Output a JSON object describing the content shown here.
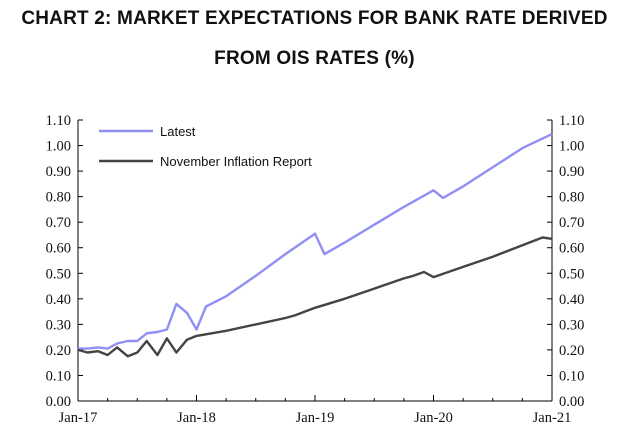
{
  "chart_data": {
    "type": "line",
    "title_line1": "CHART 2: MARKET EXPECTATIONS FOR BANK RATE DERIVED",
    "title_line2": "FROM OIS RATES (%)",
    "xlabel": "",
    "ylabel": "",
    "ylim": [
      0,
      1.1
    ],
    "xlim": [
      2017.0,
      2021.0
    ],
    "yticks": [
      "1.10",
      "1.00",
      "0.90",
      "0.80",
      "0.70",
      "0.60",
      "0.50",
      "0.40",
      "0.30",
      "0.20",
      "0.10",
      "0.00"
    ],
    "xticks": [
      {
        "label": "Jan-17",
        "x": 2017.0
      },
      {
        "label": "Jan-18",
        "x": 2018.0
      },
      {
        "label": "Jan-19",
        "x": 2019.0
      },
      {
        "label": "Jan-20",
        "x": 2020.0
      },
      {
        "label": "Jan-21",
        "x": 2021.0
      }
    ],
    "series": [
      {
        "name": "Latest",
        "color": "#8f8ff5",
        "x": [
          2017.0,
          2017.08,
          2017.17,
          2017.25,
          2017.33,
          2017.42,
          2017.5,
          2017.58,
          2017.67,
          2017.75,
          2017.83,
          2017.92,
          2018.0,
          2018.08,
          2018.25,
          2018.5,
          2018.75,
          2019.0,
          2019.08,
          2019.25,
          2019.5,
          2019.75,
          2020.0,
          2020.08,
          2020.25,
          2020.5,
          2020.75,
          2021.0
        ],
        "values": [
          0.205,
          0.205,
          0.21,
          0.205,
          0.225,
          0.235,
          0.235,
          0.265,
          0.27,
          0.28,
          0.38,
          0.345,
          0.28,
          0.37,
          0.41,
          0.49,
          0.575,
          0.655,
          0.575,
          0.62,
          0.69,
          0.76,
          0.825,
          0.795,
          0.84,
          0.915,
          0.99,
          1.045
        ]
      },
      {
        "name": "November Inflation Report",
        "color": "#444444",
        "x": [
          2017.0,
          2017.08,
          2017.17,
          2017.25,
          2017.33,
          2017.42,
          2017.5,
          2017.58,
          2017.67,
          2017.75,
          2017.83,
          2017.92,
          2018.0,
          2018.25,
          2018.5,
          2018.75,
          2018.83,
          2019.0,
          2019.25,
          2019.5,
          2019.75,
          2019.83,
          2019.92,
          2020.0,
          2020.25,
          2020.5,
          2020.75,
          2020.92,
          2021.0
        ],
        "values": [
          0.2,
          0.19,
          0.195,
          0.18,
          0.21,
          0.175,
          0.19,
          0.235,
          0.18,
          0.245,
          0.19,
          0.24,
          0.255,
          0.275,
          0.3,
          0.325,
          0.335,
          0.365,
          0.4,
          0.44,
          0.48,
          0.49,
          0.505,
          0.485,
          0.525,
          0.565,
          0.61,
          0.64,
          0.635
        ]
      }
    ],
    "legend": [
      "Latest",
      "November Inflation Report"
    ],
    "legend_position": "top-left",
    "grid": false
  }
}
